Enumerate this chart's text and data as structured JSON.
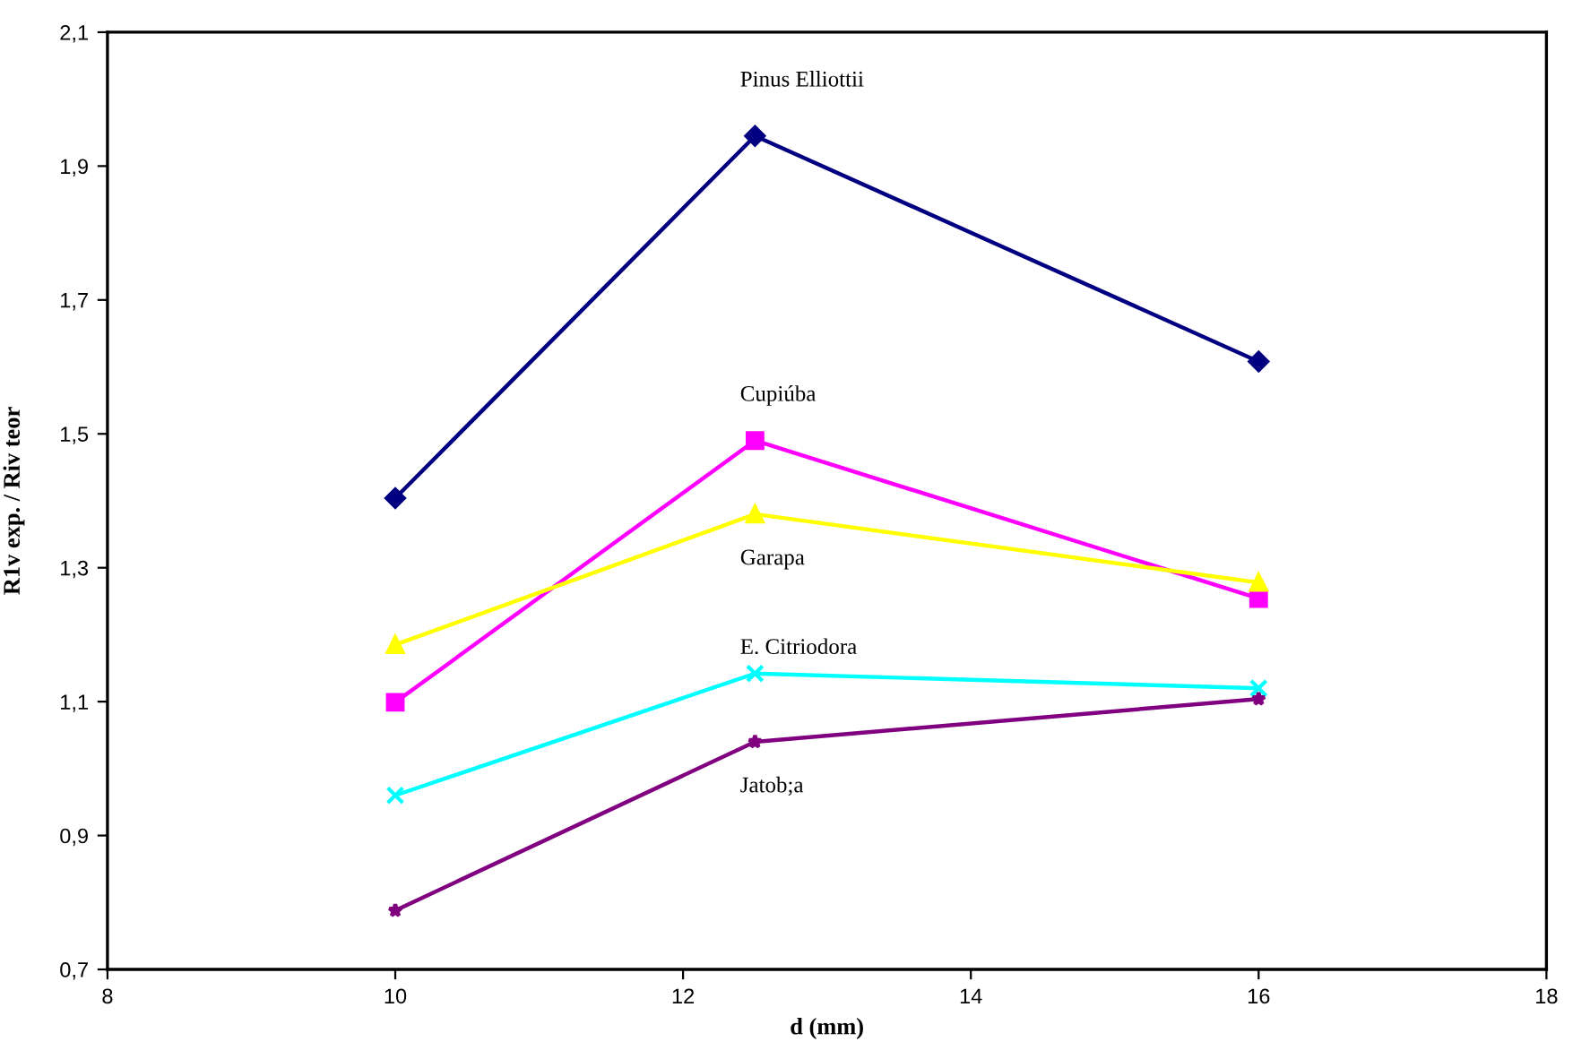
{
  "chart_data": {
    "type": "line",
    "xlabel": "d (mm)",
    "ylabel": "R1v exp. / Riv teor",
    "x": [
      10,
      12.5,
      16
    ],
    "series": [
      {
        "name": "Pinus Elliottii",
        "color": "#000080",
        "marker": "diamond",
        "values": [
          1.404,
          1.945,
          1.608
        ]
      },
      {
        "name": "Cupiúba",
        "color": "#ff00ff",
        "marker": "square",
        "values": [
          1.099,
          1.49,
          1.254
        ]
      },
      {
        "name": "Garapa",
        "color": "#ffff00",
        "marker": "triangle",
        "values": [
          1.185,
          1.38,
          1.278
        ]
      },
      {
        "name": "E. Citriodora",
        "color": "#00ffff",
        "marker": "cross",
        "values": [
          0.96,
          1.142,
          1.12
        ]
      },
      {
        "name": "Jatob;a",
        "color": "#800080",
        "marker": "star",
        "values": [
          0.788,
          1.04,
          1.104
        ]
      }
    ],
    "xlim": [
      8,
      18
    ],
    "xticks": [
      8,
      10,
      12,
      14,
      16,
      18
    ],
    "ylim": [
      0.7,
      2.1
    ],
    "yticks": [
      {
        "value": 0.7,
        "label": "0,7"
      },
      {
        "value": 0.9,
        "label": "0,9"
      },
      {
        "value": 1.1,
        "label": "1,1"
      },
      {
        "value": 1.3,
        "label": "1,3"
      },
      {
        "value": 1.5,
        "label": "1,5"
      },
      {
        "value": 1.7,
        "label": "1,7"
      },
      {
        "value": 1.9,
        "label": "1,9"
      },
      {
        "value": 2.1,
        "label": "2,1"
      }
    ],
    "grid": false,
    "legend": false,
    "line_style": "solid"
  }
}
